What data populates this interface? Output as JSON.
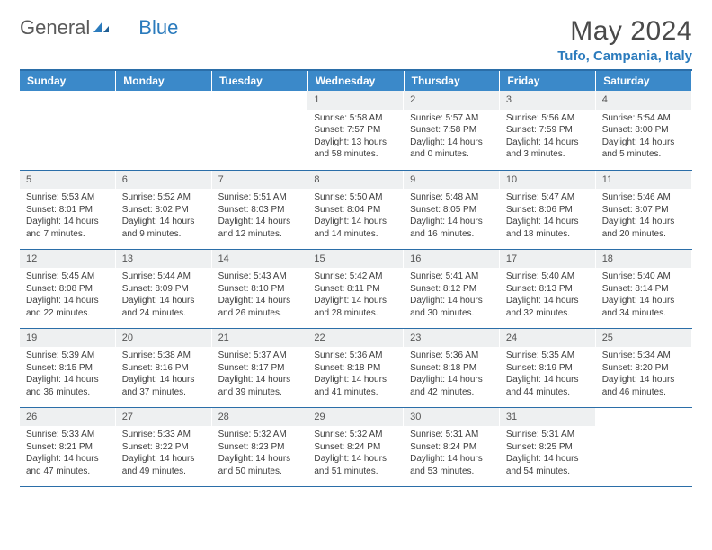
{
  "logo": {
    "text1": "General",
    "text2": "Blue"
  },
  "month_title": "May 2024",
  "location": "Tufo, Campania, Italy",
  "colors": {
    "header_bg": "#3b89c9",
    "header_text": "#ffffff",
    "daynum_bg": "#eef0f1",
    "border": "#2b6ea8",
    "accent": "#2b7bbd"
  },
  "day_headers": [
    "Sunday",
    "Monday",
    "Tuesday",
    "Wednesday",
    "Thursday",
    "Friday",
    "Saturday"
  ],
  "weeks": [
    [
      {
        "n": "",
        "sunrise": "",
        "sunset": "",
        "daylight": ""
      },
      {
        "n": "",
        "sunrise": "",
        "sunset": "",
        "daylight": ""
      },
      {
        "n": "",
        "sunrise": "",
        "sunset": "",
        "daylight": ""
      },
      {
        "n": "1",
        "sunrise": "Sunrise: 5:58 AM",
        "sunset": "Sunset: 7:57 PM",
        "daylight": "Daylight: 13 hours and 58 minutes."
      },
      {
        "n": "2",
        "sunrise": "Sunrise: 5:57 AM",
        "sunset": "Sunset: 7:58 PM",
        "daylight": "Daylight: 14 hours and 0 minutes."
      },
      {
        "n": "3",
        "sunrise": "Sunrise: 5:56 AM",
        "sunset": "Sunset: 7:59 PM",
        "daylight": "Daylight: 14 hours and 3 minutes."
      },
      {
        "n": "4",
        "sunrise": "Sunrise: 5:54 AM",
        "sunset": "Sunset: 8:00 PM",
        "daylight": "Daylight: 14 hours and 5 minutes."
      }
    ],
    [
      {
        "n": "5",
        "sunrise": "Sunrise: 5:53 AM",
        "sunset": "Sunset: 8:01 PM",
        "daylight": "Daylight: 14 hours and 7 minutes."
      },
      {
        "n": "6",
        "sunrise": "Sunrise: 5:52 AM",
        "sunset": "Sunset: 8:02 PM",
        "daylight": "Daylight: 14 hours and 9 minutes."
      },
      {
        "n": "7",
        "sunrise": "Sunrise: 5:51 AM",
        "sunset": "Sunset: 8:03 PM",
        "daylight": "Daylight: 14 hours and 12 minutes."
      },
      {
        "n": "8",
        "sunrise": "Sunrise: 5:50 AM",
        "sunset": "Sunset: 8:04 PM",
        "daylight": "Daylight: 14 hours and 14 minutes."
      },
      {
        "n": "9",
        "sunrise": "Sunrise: 5:48 AM",
        "sunset": "Sunset: 8:05 PM",
        "daylight": "Daylight: 14 hours and 16 minutes."
      },
      {
        "n": "10",
        "sunrise": "Sunrise: 5:47 AM",
        "sunset": "Sunset: 8:06 PM",
        "daylight": "Daylight: 14 hours and 18 minutes."
      },
      {
        "n": "11",
        "sunrise": "Sunrise: 5:46 AM",
        "sunset": "Sunset: 8:07 PM",
        "daylight": "Daylight: 14 hours and 20 minutes."
      }
    ],
    [
      {
        "n": "12",
        "sunrise": "Sunrise: 5:45 AM",
        "sunset": "Sunset: 8:08 PM",
        "daylight": "Daylight: 14 hours and 22 minutes."
      },
      {
        "n": "13",
        "sunrise": "Sunrise: 5:44 AM",
        "sunset": "Sunset: 8:09 PM",
        "daylight": "Daylight: 14 hours and 24 minutes."
      },
      {
        "n": "14",
        "sunrise": "Sunrise: 5:43 AM",
        "sunset": "Sunset: 8:10 PM",
        "daylight": "Daylight: 14 hours and 26 minutes."
      },
      {
        "n": "15",
        "sunrise": "Sunrise: 5:42 AM",
        "sunset": "Sunset: 8:11 PM",
        "daylight": "Daylight: 14 hours and 28 minutes."
      },
      {
        "n": "16",
        "sunrise": "Sunrise: 5:41 AM",
        "sunset": "Sunset: 8:12 PM",
        "daylight": "Daylight: 14 hours and 30 minutes."
      },
      {
        "n": "17",
        "sunrise": "Sunrise: 5:40 AM",
        "sunset": "Sunset: 8:13 PM",
        "daylight": "Daylight: 14 hours and 32 minutes."
      },
      {
        "n": "18",
        "sunrise": "Sunrise: 5:40 AM",
        "sunset": "Sunset: 8:14 PM",
        "daylight": "Daylight: 14 hours and 34 minutes."
      }
    ],
    [
      {
        "n": "19",
        "sunrise": "Sunrise: 5:39 AM",
        "sunset": "Sunset: 8:15 PM",
        "daylight": "Daylight: 14 hours and 36 minutes."
      },
      {
        "n": "20",
        "sunrise": "Sunrise: 5:38 AM",
        "sunset": "Sunset: 8:16 PM",
        "daylight": "Daylight: 14 hours and 37 minutes."
      },
      {
        "n": "21",
        "sunrise": "Sunrise: 5:37 AM",
        "sunset": "Sunset: 8:17 PM",
        "daylight": "Daylight: 14 hours and 39 minutes."
      },
      {
        "n": "22",
        "sunrise": "Sunrise: 5:36 AM",
        "sunset": "Sunset: 8:18 PM",
        "daylight": "Daylight: 14 hours and 41 minutes."
      },
      {
        "n": "23",
        "sunrise": "Sunrise: 5:36 AM",
        "sunset": "Sunset: 8:18 PM",
        "daylight": "Daylight: 14 hours and 42 minutes."
      },
      {
        "n": "24",
        "sunrise": "Sunrise: 5:35 AM",
        "sunset": "Sunset: 8:19 PM",
        "daylight": "Daylight: 14 hours and 44 minutes."
      },
      {
        "n": "25",
        "sunrise": "Sunrise: 5:34 AM",
        "sunset": "Sunset: 8:20 PM",
        "daylight": "Daylight: 14 hours and 46 minutes."
      }
    ],
    [
      {
        "n": "26",
        "sunrise": "Sunrise: 5:33 AM",
        "sunset": "Sunset: 8:21 PM",
        "daylight": "Daylight: 14 hours and 47 minutes."
      },
      {
        "n": "27",
        "sunrise": "Sunrise: 5:33 AM",
        "sunset": "Sunset: 8:22 PM",
        "daylight": "Daylight: 14 hours and 49 minutes."
      },
      {
        "n": "28",
        "sunrise": "Sunrise: 5:32 AM",
        "sunset": "Sunset: 8:23 PM",
        "daylight": "Daylight: 14 hours and 50 minutes."
      },
      {
        "n": "29",
        "sunrise": "Sunrise: 5:32 AM",
        "sunset": "Sunset: 8:24 PM",
        "daylight": "Daylight: 14 hours and 51 minutes."
      },
      {
        "n": "30",
        "sunrise": "Sunrise: 5:31 AM",
        "sunset": "Sunset: 8:24 PM",
        "daylight": "Daylight: 14 hours and 53 minutes."
      },
      {
        "n": "31",
        "sunrise": "Sunrise: 5:31 AM",
        "sunset": "Sunset: 8:25 PM",
        "daylight": "Daylight: 14 hours and 54 minutes."
      },
      {
        "n": "",
        "sunrise": "",
        "sunset": "",
        "daylight": ""
      }
    ]
  ]
}
